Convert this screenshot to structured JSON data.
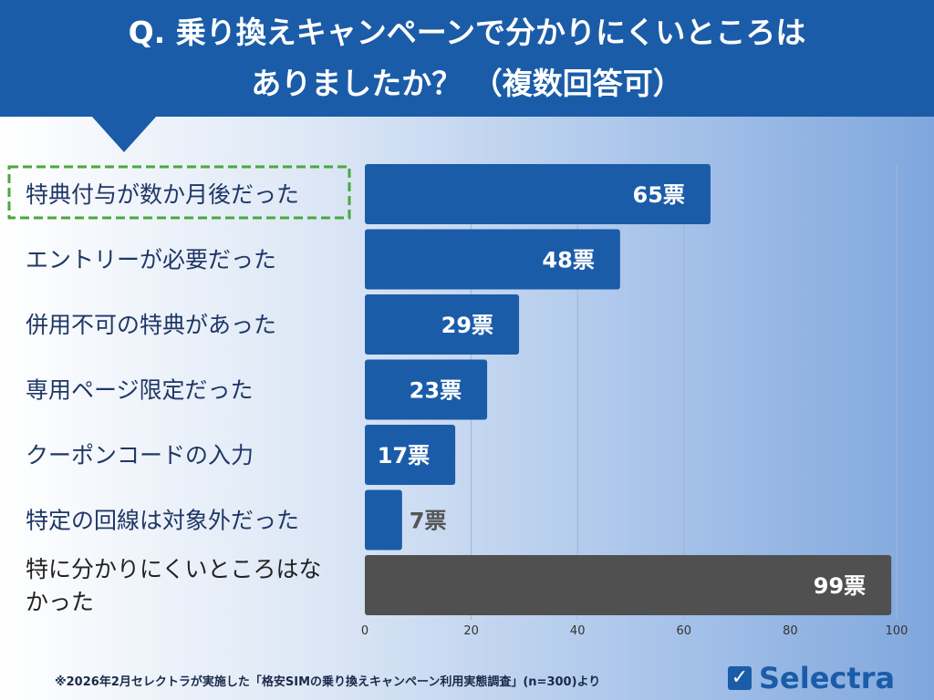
{
  "header": {
    "title_line1": "Q. 乗り換えキャンペーンで分かりにくいところは",
    "title_line2": "ありましたか？ （複数回答可）"
  },
  "chart_data": {
    "type": "bar",
    "orientation": "horizontal",
    "categories": [
      "特典付与が数か月後だった",
      "エントリーが必要だった",
      "併用不可の特典があった",
      "専用ページ限定だった",
      "クーポンコードの入力",
      "特定の回線は対象外だった",
      "特に分かりにくいところはなかった"
    ],
    "category_lines": [
      [
        "特典付与が数か月後だった"
      ],
      [
        "エントリーが必要だった"
      ],
      [
        "併用不可の特典があった"
      ],
      [
        "専用ページ限定だった"
      ],
      [
        "クーポンコードの入力"
      ],
      [
        "特定の回線は対象外だった"
      ],
      [
        "特に分かりにくいところはな",
        "かった"
      ]
    ],
    "values": [
      65,
      48,
      29,
      23,
      17,
      7,
      99
    ],
    "data_labels": [
      "65票",
      "48票",
      "29票",
      "23票",
      "17票",
      "7票",
      "99票"
    ],
    "xlim": [
      0,
      100
    ],
    "xticks": [
      "0",
      "20",
      "40",
      "60",
      "80",
      "100"
    ],
    "grid": true,
    "highlighted_category": "特典付与が数か月後だった",
    "colors": {
      "bar": "#1b5ca8",
      "none_bar": "#505050",
      "highlight_border": "#4aa83c"
    }
  },
  "footer": {
    "note": "※2026年2月セレクトラが実施した「格安SIMの乗り換えキャンペーン利用実態調査」(n=300)より"
  },
  "logo": {
    "text": "Selectra",
    "icon": "checkbox-icon"
  }
}
